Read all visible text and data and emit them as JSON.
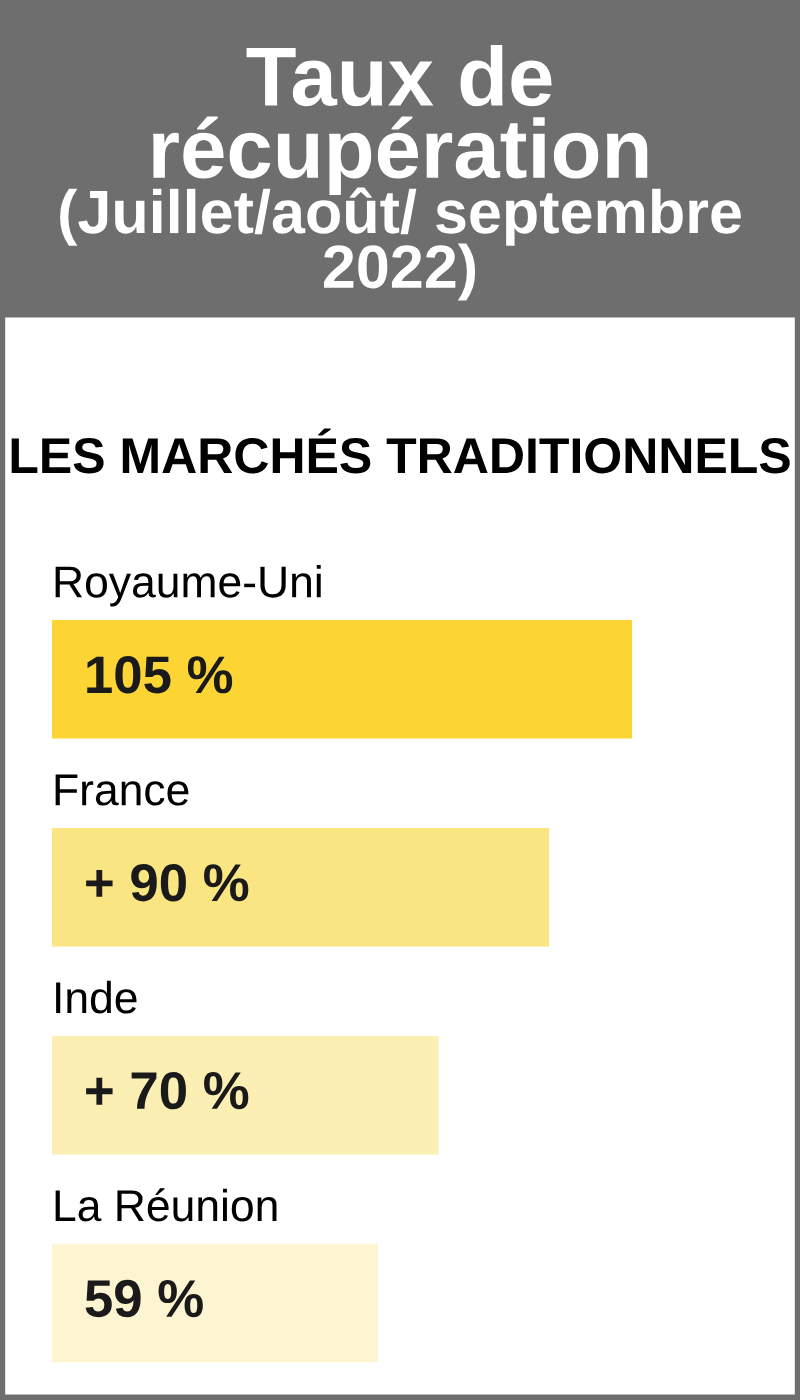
{
  "chart_data": {
    "type": "bar",
    "orientation": "horizontal",
    "title": "Taux de récupération",
    "subtitle": "(Juillet/août/ septembre 2022)",
    "annotations": [
      "LES MARCHÉS TRADITIONNELS"
    ],
    "categories": [
      "Royaume-Uni",
      "France",
      "Inde",
      "La Réunion"
    ],
    "values": [
      105,
      90,
      70,
      59
    ],
    "value_labels": [
      "105 %",
      "+ 90 %",
      "+ 70 %",
      "59 %"
    ],
    "colors": [
      "#fcd535",
      "#fae583",
      "#fcefb3",
      "#fdf4d2"
    ]
  }
}
